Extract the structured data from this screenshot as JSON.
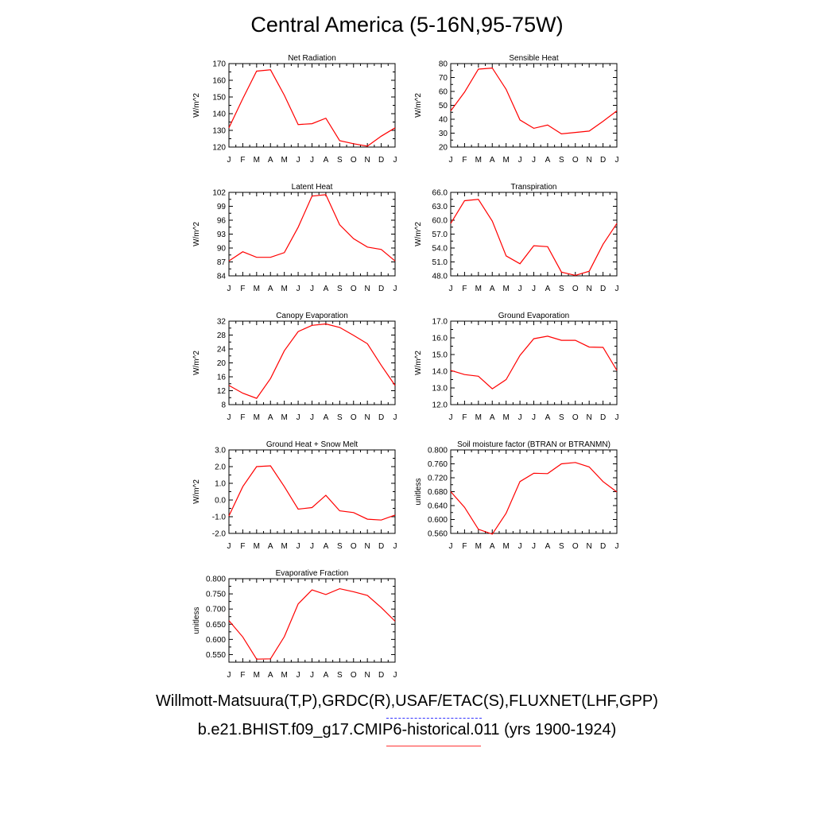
{
  "title": "Central America (5-16N,95-75W)",
  "footer": {
    "obs_line": "Willmott-Matsuura(T,P),GRDC(R),USAF/ETAC(S),FLUXNET(LHF,GPP)",
    "model_line": "b.e21.BHIST.f09_g17.CMIP6-historical.011 (yrs 1900-1924)"
  },
  "colors": {
    "series": "#ff0000",
    "obs_legend": "#3333ff",
    "model_legend": "#ff3333",
    "axes": "#000000"
  },
  "chart_data": [
    {
      "type": "line",
      "title": "Net Radiation",
      "ylabel": "W/m^2",
      "categories": [
        "J",
        "F",
        "M",
        "A",
        "M",
        "J",
        "J",
        "A",
        "S",
        "O",
        "N",
        "D",
        "J"
      ],
      "ylim": [
        120,
        170
      ],
      "yticks": [
        "120",
        "130",
        "140",
        "150",
        "160",
        "170"
      ],
      "values": [
        131.5,
        149,
        165.5,
        166.3,
        151,
        133.5,
        134,
        137.3,
        123.8,
        122,
        120.5,
        126.5,
        131.5
      ]
    },
    {
      "type": "line",
      "title": "Sensible Heat",
      "ylabel": "W/m^2",
      "categories": [
        "J",
        "F",
        "M",
        "A",
        "M",
        "J",
        "J",
        "A",
        "S",
        "O",
        "N",
        "D",
        "J"
      ],
      "ylim": [
        20,
        80
      ],
      "yticks": [
        "20",
        "30",
        "40",
        "50",
        "60",
        "70",
        "80"
      ],
      "values": [
        46,
        59.5,
        76,
        76.8,
        61.5,
        39.5,
        33.5,
        35.8,
        29.5,
        30.5,
        31.5,
        38.5,
        46
      ]
    },
    {
      "type": "line",
      "title": "Latent Heat",
      "ylabel": "W/m^2",
      "categories": [
        "J",
        "F",
        "M",
        "A",
        "M",
        "J",
        "J",
        "A",
        "S",
        "O",
        "N",
        "D",
        "J"
      ],
      "ylim": [
        84,
        102
      ],
      "yticks": [
        "84",
        "87",
        "90",
        "93",
        "96",
        "99",
        "102"
      ],
      "values": [
        87.2,
        89.2,
        88,
        88,
        89,
        94.5,
        101.2,
        101.5,
        95,
        92,
        90.2,
        89.7,
        87.2
      ]
    },
    {
      "type": "line",
      "title": "Transpiration",
      "ylabel": "W/m^2",
      "categories": [
        "J",
        "F",
        "M",
        "A",
        "M",
        "J",
        "J",
        "A",
        "S",
        "O",
        "N",
        "D",
        "J"
      ],
      "ylim": [
        48,
        66
      ],
      "yticks": [
        "48.0",
        "51.0",
        "54.0",
        "57.0",
        "60.0",
        "63.0",
        "66.0"
      ],
      "values": [
        59.3,
        64.2,
        64.5,
        59.8,
        52.3,
        50.6,
        54.5,
        54.3,
        48.8,
        48.1,
        49,
        54.8,
        59.3
      ]
    },
    {
      "type": "line",
      "title": "Canopy Evaporation",
      "ylabel": "W/m^2",
      "categories": [
        "J",
        "F",
        "M",
        "A",
        "M",
        "J",
        "J",
        "A",
        "S",
        "O",
        "N",
        "D",
        "J"
      ],
      "ylim": [
        8,
        32
      ],
      "yticks": [
        "8",
        "12",
        "16",
        "20",
        "24",
        "28",
        "32"
      ],
      "values": [
        13.5,
        11.3,
        9.8,
        15.5,
        23.5,
        29,
        30.8,
        31.2,
        30.2,
        27.9,
        25.5,
        19.3,
        13.5
      ]
    },
    {
      "type": "line",
      "title": "Ground Evaporation",
      "ylabel": "W/m^2",
      "categories": [
        "J",
        "F",
        "M",
        "A",
        "M",
        "J",
        "J",
        "A",
        "S",
        "O",
        "N",
        "D",
        "J"
      ],
      "ylim": [
        12,
        17
      ],
      "yticks": [
        "12.0",
        "13.0",
        "14.0",
        "15.0",
        "16.0",
        "17.0"
      ],
      "values": [
        14.05,
        13.8,
        13.7,
        12.95,
        13.5,
        14.95,
        15.95,
        16.1,
        15.85,
        15.85,
        15.45,
        15.43,
        14.05
      ]
    },
    {
      "type": "line",
      "title": "Ground Heat + Snow Melt",
      "ylabel": "W/m^2",
      "categories": [
        "J",
        "F",
        "M",
        "A",
        "M",
        "J",
        "J",
        "A",
        "S",
        "O",
        "N",
        "D",
        "J"
      ],
      "ylim": [
        -2,
        3
      ],
      "yticks": [
        "-2.0",
        "-1.0",
        "0.0",
        "1.0",
        "2.0",
        "3.0"
      ],
      "values": [
        -0.95,
        0.8,
        2,
        2.05,
        0.8,
        -0.55,
        -0.45,
        0.28,
        -0.65,
        -0.75,
        -1.15,
        -1.2,
        -0.9
      ]
    },
    {
      "type": "line",
      "title": "Soil moisture factor (BTRAN or BTRANMN)",
      "ylabel": "unitless",
      "categories": [
        "J",
        "F",
        "M",
        "A",
        "M",
        "J",
        "J",
        "A",
        "S",
        "O",
        "N",
        "D",
        "J"
      ],
      "ylim": [
        0.56,
        0.8
      ],
      "yticks": [
        "0.560",
        "0.600",
        "0.640",
        "0.680",
        "0.720",
        "0.760",
        "0.800"
      ],
      "values": [
        0.68,
        0.635,
        0.572,
        0.558,
        0.618,
        0.709,
        0.733,
        0.732,
        0.76,
        0.764,
        0.751,
        0.709,
        0.679
      ]
    },
    {
      "type": "line",
      "title": "Evaporative Fraction",
      "ylabel": "unitless",
      "categories": [
        "J",
        "F",
        "M",
        "A",
        "M",
        "J",
        "J",
        "A",
        "S",
        "O",
        "N",
        "D",
        "J"
      ],
      "ylim": [
        0.525,
        0.8
      ],
      "yticks": [
        "0.550",
        "0.600",
        "0.650",
        "0.700",
        "0.750",
        "0.800"
      ],
      "values": [
        0.662,
        0.608,
        0.535,
        0.536,
        0.609,
        0.717,
        0.763,
        0.748,
        0.767,
        0.757,
        0.745,
        0.705,
        0.66
      ]
    }
  ]
}
